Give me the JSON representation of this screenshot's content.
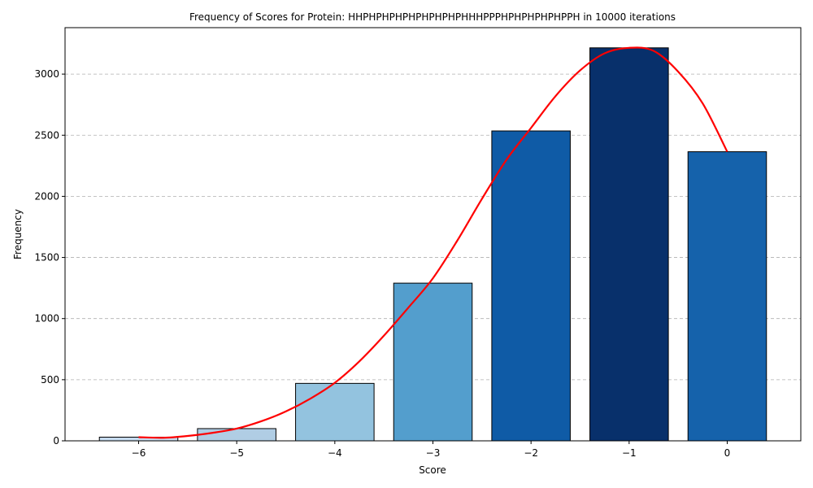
{
  "chart_data": {
    "type": "bar",
    "title": "Frequency of Scores for Protein: HHPHPHPHPHPHPHPHPHHHPPPHPHPHPHPHPPH in 10000 iterations",
    "xlabel": "Score",
    "ylabel": "Frequency",
    "categories": [
      "−6",
      "−5",
      "−4",
      "−3",
      "−2",
      "−1",
      "0"
    ],
    "x": [
      -6,
      -5,
      -4,
      -3,
      -2,
      -1,
      0
    ],
    "values": [
      30,
      100,
      470,
      1290,
      2535,
      3215,
      2365
    ],
    "bar_colors": [
      "#c6dbef",
      "#b0cde4",
      "#93c3df",
      "#539ecd",
      "#0f5ba6",
      "#08306b",
      "#1562ab"
    ],
    "bar_edge_color": "#000000",
    "fit_curve": {
      "color": "#ff0000",
      "x": [
        -6,
        -5.75,
        -5.5,
        -5.25,
        -5,
        -4.75,
        -4.5,
        -4.25,
        -4,
        -3.75,
        -3.5,
        -3.25,
        -3,
        -2.75,
        -2.5,
        -2.25,
        -2,
        -1.75,
        -1.5,
        -1.25,
        -1,
        -0.75,
        -0.5,
        -0.25,
        0
      ],
      "y": [
        30,
        25,
        40,
        65,
        100,
        160,
        240,
        345,
        475,
        650,
        860,
        1090,
        1330,
        1640,
        1980,
        2300,
        2560,
        2820,
        3030,
        3170,
        3215,
        3190,
        3020,
        2760,
        2365
      ]
    },
    "xlim": [
      -6.75,
      0.75
    ],
    "ylim": [
      0,
      3380
    ],
    "yticks": [
      0,
      500,
      1000,
      1500,
      2000,
      2500,
      3000
    ],
    "ytick_labels": [
      "0",
      "500",
      "1000",
      "1500",
      "2000",
      "2500",
      "3000"
    ],
    "grid": "y-dashed",
    "legend": "none"
  }
}
